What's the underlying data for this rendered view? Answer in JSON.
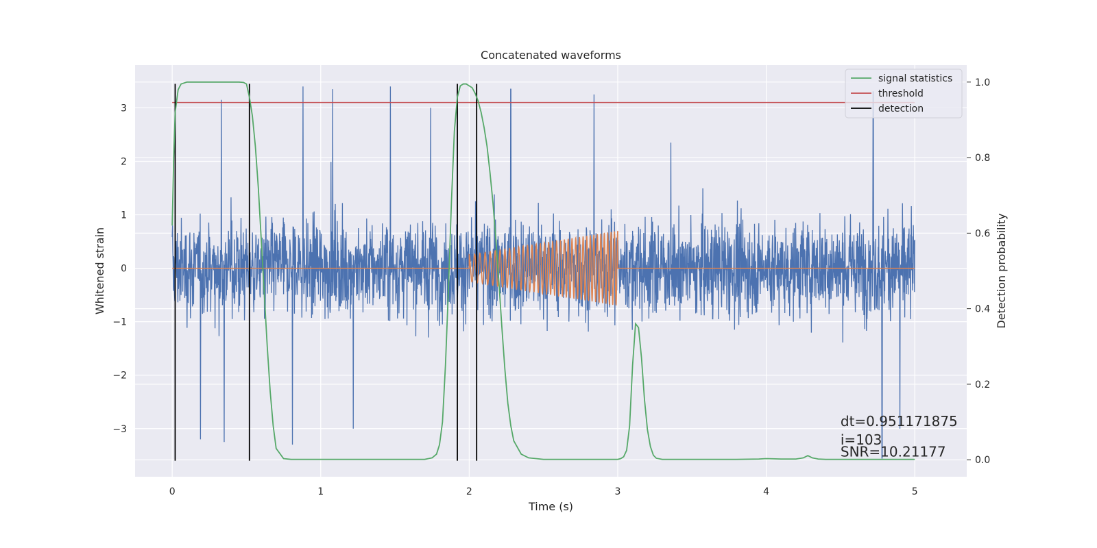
{
  "chart_data": {
    "type": "line",
    "title": "Concatenated waveforms",
    "xlabel": "Time (s)",
    "ylabel": "Whitened strain",
    "y2label": "Detection probability",
    "xlim": [
      -0.25,
      5.35
    ],
    "ylim": [
      -3.9,
      3.8
    ],
    "y2lim": [
      -0.045,
      1.045
    ],
    "x_ticks": [
      0,
      1,
      2,
      3,
      4,
      5
    ],
    "y_ticks": [
      -3,
      -2,
      -1,
      0,
      1,
      2,
      3
    ],
    "y2_ticks": [
      0.0,
      0.2,
      0.4,
      0.6,
      0.8,
      1.0
    ],
    "x_tick_labels": [
      "0",
      "1",
      "2",
      "3",
      "4",
      "5"
    ],
    "y_tick_labels": [
      "−3",
      "−2",
      "−1",
      "0",
      "1",
      "2",
      "3"
    ],
    "y2_tick_labels": [
      "0.0",
      "0.2",
      "0.4",
      "0.6",
      "0.8",
      "1.0"
    ],
    "grid": true,
    "legend_position": "top-right",
    "legend": [
      {
        "label": "signal statistics",
        "color": "#55a868"
      },
      {
        "label": "threshold",
        "color": "#c44e52"
      },
      {
        "label": "detection",
        "color": "#000000"
      }
    ],
    "colors": {
      "background": "#eaeaf2",
      "strain": "#4c72b0",
      "template": "#dd8452",
      "statistics": "#55a868",
      "threshold": "#c44e52",
      "detection": "#000000"
    },
    "series": [
      {
        "name": "signal statistics",
        "axis": "right",
        "x": [
          0.0,
          0.01,
          0.02,
          0.04,
          0.06,
          0.1,
          0.2,
          0.3,
          0.4,
          0.45,
          0.48,
          0.5,
          0.52,
          0.54,
          0.56,
          0.58,
          0.6,
          0.62,
          0.64,
          0.66,
          0.68,
          0.7,
          0.75,
          0.8,
          1.0,
          1.4,
          1.7,
          1.75,
          1.78,
          1.8,
          1.82,
          1.84,
          1.86,
          1.88,
          1.9,
          1.92,
          1.94,
          1.96,
          1.98,
          2.0,
          2.02,
          2.04,
          2.06,
          2.08,
          2.1,
          2.12,
          2.14,
          2.16,
          2.18,
          2.2,
          2.22,
          2.24,
          2.26,
          2.28,
          2.3,
          2.35,
          2.4,
          2.5,
          2.7,
          2.9,
          3.0,
          3.02,
          3.04,
          3.06,
          3.08,
          3.1,
          3.12,
          3.14,
          3.16,
          3.18,
          3.2,
          3.22,
          3.24,
          3.26,
          3.3,
          3.4,
          3.6,
          3.8,
          3.95,
          4.0,
          4.1,
          4.2,
          4.25,
          4.28,
          4.31,
          4.35,
          4.4,
          4.6,
          4.8,
          5.0
        ],
        "y": [
          0.62,
          0.8,
          0.92,
          0.98,
          0.995,
          1.0,
          1.0,
          1.0,
          1.0,
          1.0,
          0.999,
          0.995,
          0.96,
          0.91,
          0.83,
          0.72,
          0.58,
          0.44,
          0.3,
          0.18,
          0.09,
          0.03,
          0.003,
          0.001,
          0.001,
          0.001,
          0.001,
          0.005,
          0.015,
          0.04,
          0.1,
          0.25,
          0.45,
          0.68,
          0.87,
          0.96,
          0.99,
          0.995,
          0.995,
          0.99,
          0.985,
          0.97,
          0.95,
          0.92,
          0.88,
          0.83,
          0.76,
          0.68,
          0.58,
          0.47,
          0.35,
          0.24,
          0.15,
          0.09,
          0.05,
          0.015,
          0.005,
          0.001,
          0.001,
          0.001,
          0.001,
          0.003,
          0.008,
          0.025,
          0.09,
          0.25,
          0.36,
          0.35,
          0.27,
          0.16,
          0.08,
          0.035,
          0.012,
          0.004,
          0.001,
          0.001,
          0.001,
          0.001,
          0.002,
          0.003,
          0.002,
          0.002,
          0.005,
          0.011,
          0.005,
          0.002,
          0.001,
          0.001,
          0.001,
          0.001
        ]
      },
      {
        "name": "threshold",
        "axis": "left",
        "x": [
          0.0,
          5.0
        ],
        "y": [
          3.1,
          3.1
        ]
      },
      {
        "name": "detection",
        "axis": "left",
        "x": [
          0.02,
          0.52,
          1.92,
          2.05
        ],
        "y_range": [
          -3.6,
          3.45
        ]
      },
      {
        "name": "",
        "axis": "left",
        "description_kind": "whitened strain noise",
        "x_range": [
          0.0,
          5.0
        ],
        "typical_band": [
          -1.45,
          1.45
        ],
        "extreme_peaks": [
          {
            "x": 0.33,
            "y": 3.15
          },
          {
            "x": 0.88,
            "y": 3.4
          },
          {
            "x": 1.08,
            "y": 3.35
          },
          {
            "x": 1.47,
            "y": 3.4
          },
          {
            "x": 1.74,
            "y": 3.0
          },
          {
            "x": 2.28,
            "y": 3.35
          },
          {
            "x": 2.84,
            "y": 3.25
          },
          {
            "x": 4.72,
            "y": 3.3
          },
          {
            "x": 0.81,
            "y": -3.3
          },
          {
            "x": 0.19,
            "y": -3.2
          },
          {
            "x": 0.35,
            "y": -3.25
          },
          {
            "x": 1.22,
            "y": -3.0
          },
          {
            "x": 4.78,
            "y": -3.55
          },
          {
            "x": 4.9,
            "y": -3.0
          }
        ]
      },
      {
        "name": "",
        "axis": "left",
        "description_kind": "injected chirp template",
        "x_range": [
          2.0,
          3.0
        ],
        "amplitude_start": 0.25,
        "amplitude_end": 0.7,
        "cycles": 36
      }
    ],
    "annotations": [
      {
        "text": "dt=0.951171875",
        "x": 4.5,
        "y": -2.95
      },
      {
        "text": " i=103",
        "x": 4.5,
        "y": -3.3
      },
      {
        "text": "SNR=10.21177",
        "x": 4.5,
        "y": -3.52
      }
    ]
  }
}
